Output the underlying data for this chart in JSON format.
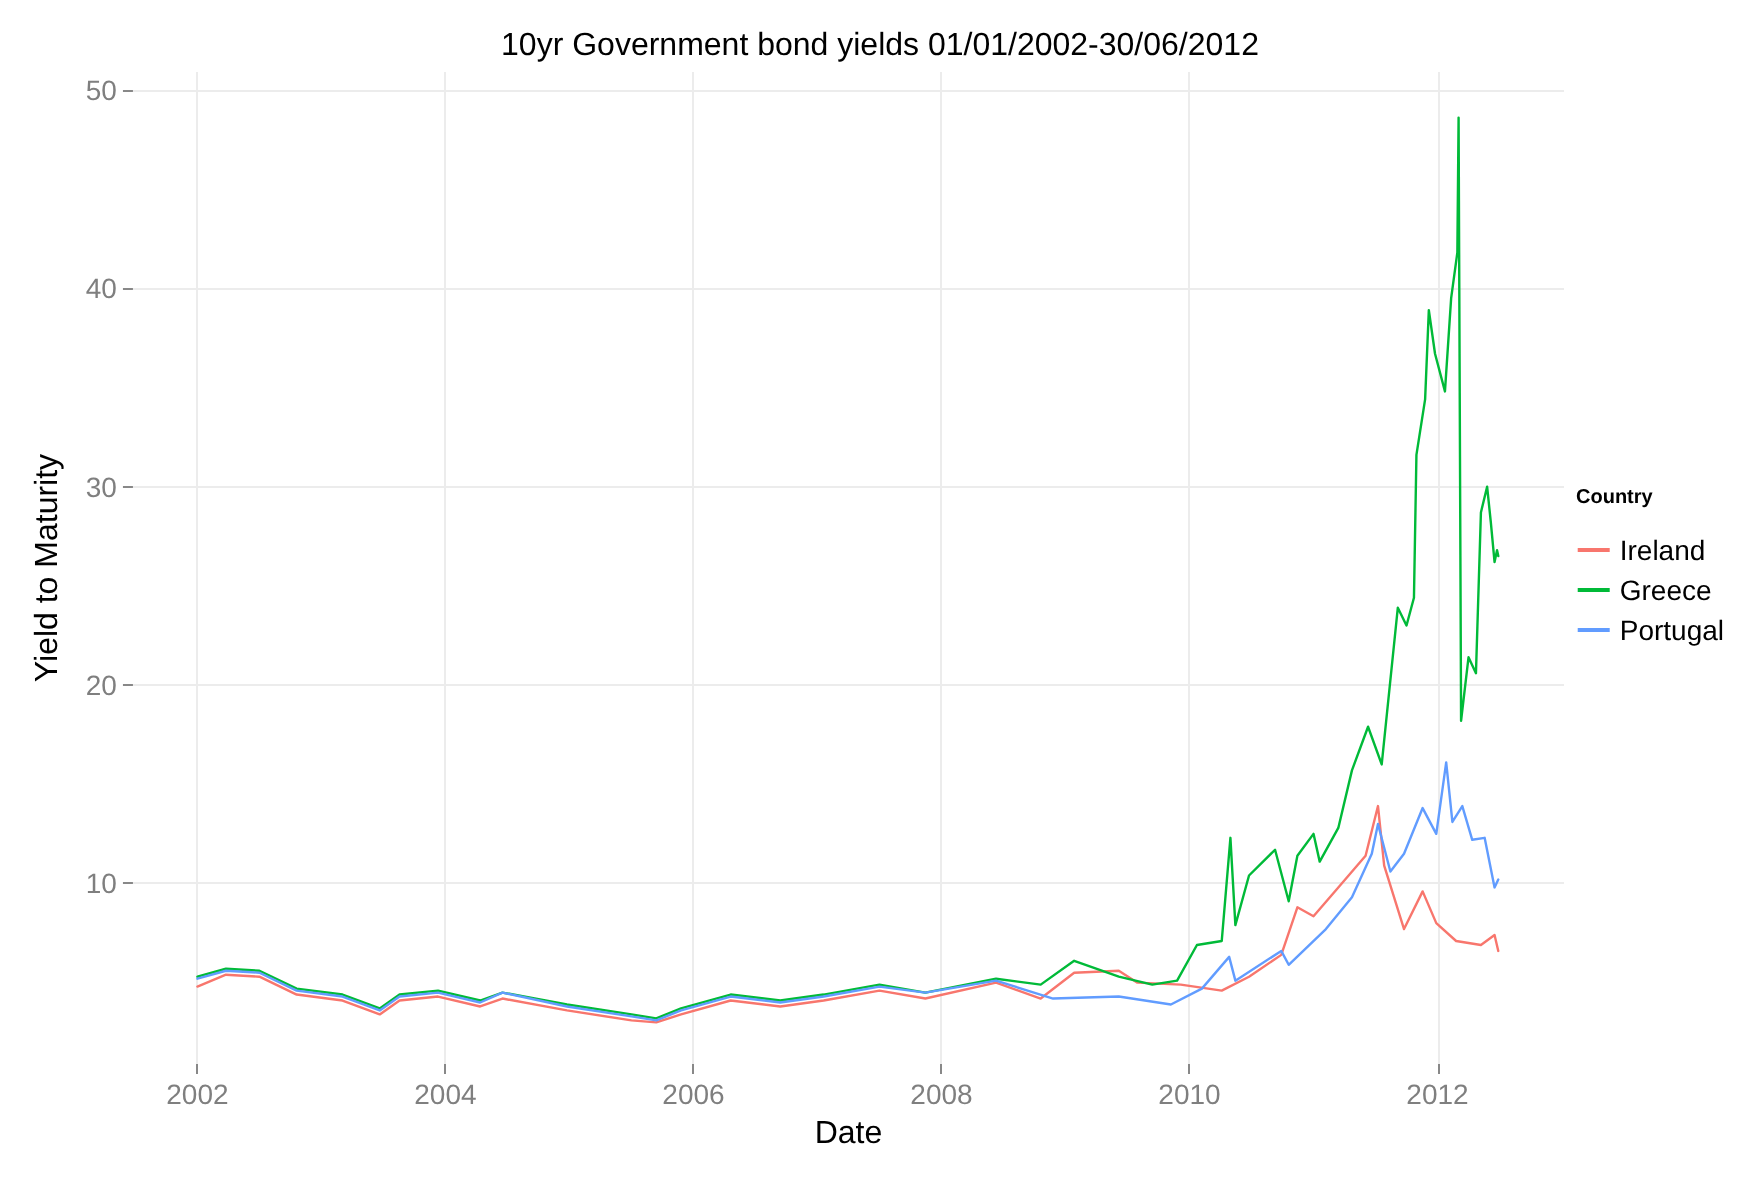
{
  "chart_data": {
    "type": "line",
    "title": "10yr Government bond yields 01/01/2002-30/06/2012",
    "xlabel": "Date",
    "ylabel": "Yield to Maturity",
    "legend_title": "Country",
    "legend": "right",
    "grid": true,
    "marker": "none",
    "xlim": [
      2001.48,
      2013.02
    ],
    "xticks": [
      2002,
      2004,
      2006,
      2008,
      2010,
      2012
    ],
    "ylim": [
      0.9,
      50.9
    ],
    "yticks": [
      10,
      20,
      30,
      40,
      50
    ],
    "series": [
      {
        "name": "Ireland",
        "color": "#f8766d",
        "x": [
          2002.0,
          2002.23,
          2002.5,
          2002.8,
          2003.17,
          2003.47,
          2003.63,
          2003.94,
          2004.28,
          2004.46,
          2004.98,
          2005.5,
          2005.7,
          2005.9,
          2006.3,
          2006.7,
          2007.05,
          2007.5,
          2007.87,
          2008.44,
          2008.8,
          2009.07,
          2009.43,
          2009.58,
          2009.93,
          2010.26,
          2010.48,
          2010.74,
          2010.87,
          2011.0,
          2011.2,
          2011.42,
          2011.52,
          2011.57,
          2011.73,
          2011.88,
          2011.99,
          2012.15,
          2012.35,
          2012.46,
          2012.49
        ],
        "values": [
          4.8,
          5.4,
          5.3,
          4.4,
          4.1,
          3.4,
          4.1,
          4.3,
          3.8,
          4.2,
          3.6,
          3.1,
          3.0,
          3.4,
          4.1,
          3.8,
          4.1,
          4.6,
          4.2,
          5.0,
          4.2,
          5.5,
          5.6,
          5.0,
          4.9,
          4.6,
          5.3,
          6.4,
          8.8,
          8.35,
          9.8,
          11.4,
          13.9,
          10.9,
          7.7,
          9.6,
          8.0,
          7.1,
          6.9,
          7.4,
          6.6
        ]
      },
      {
        "name": "Greece",
        "color": "#00ba38",
        "x": [
          2002.0,
          2002.23,
          2002.5,
          2002.8,
          2003.17,
          2003.47,
          2003.63,
          2003.94,
          2004.28,
          2004.46,
          2004.98,
          2005.5,
          2005.7,
          2005.9,
          2006.3,
          2006.7,
          2007.05,
          2007.5,
          2007.87,
          2008.44,
          2008.8,
          2009.07,
          2009.43,
          2009.7,
          2009.9,
          2010.06,
          2010.26,
          2010.33,
          2010.37,
          2010.48,
          2010.69,
          2010.8,
          2010.87,
          2011.0,
          2011.05,
          2011.2,
          2011.31,
          2011.44,
          2011.55,
          2011.68,
          2011.75,
          2011.81,
          2011.83,
          2011.9,
          2011.93,
          2011.98,
          2012.06,
          2012.11,
          2012.16,
          2012.17,
          2012.19,
          2012.25,
          2012.31,
          2012.35,
          2012.4,
          2012.43,
          2012.46,
          2012.48,
          2012.49
        ],
        "values": [
          5.3,
          5.7,
          5.6,
          4.7,
          4.4,
          3.7,
          4.4,
          4.6,
          4.1,
          4.5,
          3.9,
          3.4,
          3.2,
          3.7,
          4.4,
          4.1,
          4.4,
          4.9,
          4.5,
          5.2,
          4.9,
          6.1,
          5.3,
          4.9,
          5.1,
          6.9,
          7.1,
          12.3,
          7.9,
          10.4,
          11.7,
          9.1,
          11.4,
          12.5,
          11.1,
          12.8,
          15.7,
          17.9,
          16.0,
          23.9,
          23.0,
          24.4,
          31.6,
          34.4,
          38.9,
          36.7,
          34.8,
          39.5,
          41.8,
          48.6,
          18.2,
          21.4,
          20.6,
          28.7,
          30.0,
          28.2,
          26.2,
          26.8,
          26.5
        ]
      },
      {
        "name": "Portugal",
        "color": "#619cff",
        "x": [
          2002.0,
          2002.23,
          2002.5,
          2002.8,
          2003.17,
          2003.47,
          2003.63,
          2003.94,
          2004.28,
          2004.46,
          2004.98,
          2005.5,
          2005.7,
          2005.9,
          2006.3,
          2006.7,
          2007.05,
          2007.5,
          2007.87,
          2008.44,
          2008.9,
          2009.43,
          2009.85,
          2010.1,
          2010.32,
          2010.37,
          2010.74,
          2010.8,
          2011.1,
          2011.31,
          2011.47,
          2011.52,
          2011.62,
          2011.73,
          2011.88,
          2011.99,
          2012.07,
          2012.12,
          2012.2,
          2012.28,
          2012.38,
          2012.46,
          2012.49
        ],
        "values": [
          5.2,
          5.6,
          5.5,
          4.6,
          4.3,
          3.6,
          4.3,
          4.5,
          4.0,
          4.5,
          3.8,
          3.3,
          3.1,
          3.6,
          4.3,
          4.0,
          4.3,
          4.8,
          4.5,
          5.1,
          4.2,
          4.3,
          3.9,
          4.7,
          6.3,
          5.1,
          6.6,
          5.9,
          7.7,
          9.3,
          11.5,
          13.0,
          10.6,
          11.5,
          13.8,
          12.5,
          16.1,
          13.1,
          13.9,
          12.2,
          12.3,
          9.8,
          10.2
        ]
      }
    ]
  }
}
